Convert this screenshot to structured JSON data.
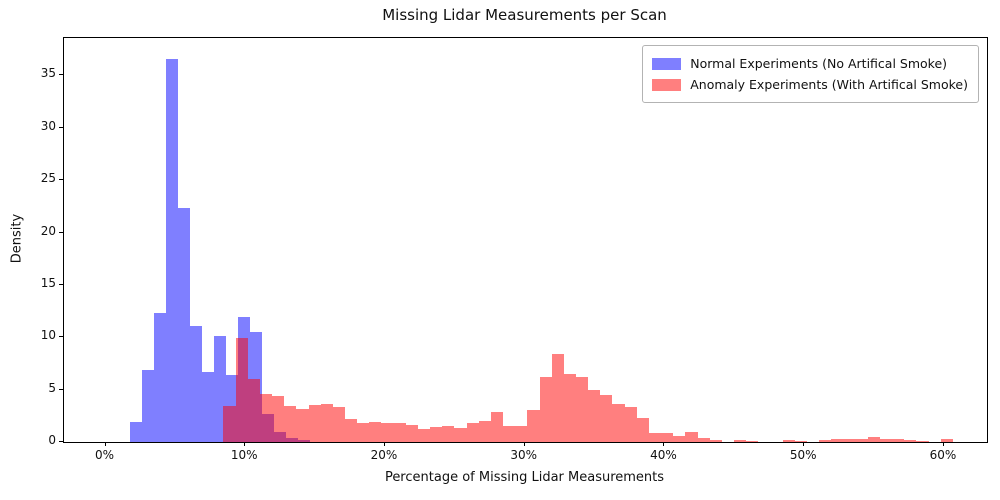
{
  "figure": {
    "background": "#ffffff",
    "axes_edge_color": "#000000"
  },
  "chart_data": {
    "type": "histogram",
    "title": "Missing Lidar Measurements per Scan",
    "xlabel": "Percentage of Missing Lidar Measurements",
    "ylabel": "Density",
    "xlim_pct": [
      -2.97,
      63.08
    ],
    "ylim": [
      0,
      38.58
    ],
    "grid": false,
    "x_ticks": [
      {
        "label": "0%",
        "value": 0
      },
      {
        "label": "10%",
        "value": 10
      },
      {
        "label": "20%",
        "value": 20
      },
      {
        "label": "30%",
        "value": 30
      },
      {
        "label": "40%",
        "value": 40
      },
      {
        "label": "50%",
        "value": 50
      },
      {
        "label": "60%",
        "value": 60
      }
    ],
    "y_ticks": [
      {
        "label": "0",
        "value": 0
      },
      {
        "label": "5",
        "value": 5
      },
      {
        "label": "10",
        "value": 10
      },
      {
        "label": "15",
        "value": 15
      },
      {
        "label": "20",
        "value": 20
      },
      {
        "label": "25",
        "value": 25
      },
      {
        "label": "30",
        "value": 30
      },
      {
        "label": "35",
        "value": 35
      }
    ],
    "series": [
      {
        "name": "Normal Experiments (No Artifical Smoke)",
        "key": "normal",
        "fill": "rgba(0,0,255,0.5)",
        "solid_color_on_white": "#8080ff",
        "bin_start_pct": 1.72,
        "bin_width_pct": 0.86,
        "heights": [
          1.9,
          6.9,
          12.3,
          36.6,
          22.3,
          11.1,
          6.7,
          10.1,
          6.4,
          11.9,
          10.5,
          2.7,
          1.0,
          0.4,
          0.2
        ]
      },
      {
        "name": "Anomaly Experiments (With Artifical Smoke)",
        "key": "anomaly",
        "fill": "rgba(255,0,0,0.5)",
        "solid_color_on_white": "#ff8080",
        "bin_start_pct": 8.44,
        "bin_width_pct": 0.87,
        "heights": [
          3.4,
          9.9,
          6.0,
          4.6,
          4.4,
          3.4,
          3.2,
          3.5,
          3.6,
          3.3,
          2.2,
          1.8,
          1.9,
          1.8,
          1.8,
          1.6,
          1.2,
          1.4,
          1.5,
          1.3,
          1.85,
          2.05,
          2.9,
          1.5,
          1.55,
          3.1,
          6.2,
          8.4,
          6.5,
          6.2,
          5.0,
          4.5,
          3.6,
          3.3,
          2.3,
          0.9,
          0.85,
          0.55,
          0.95,
          0.4,
          0.15,
          0,
          0.2,
          0.1,
          0,
          0,
          0.2,
          0.1,
          0,
          0.15,
          0.25,
          0.3,
          0.25,
          0.5,
          0.3,
          0.25,
          0.2,
          0.1,
          0,
          0.3
        ]
      }
    ],
    "overlap_color_on_white": "#bf4080",
    "legend": {
      "position": "upper right",
      "entries": [
        {
          "label": "Normal Experiments (No Artifical Smoke)"
        },
        {
          "label": "Anomaly Experiments (With Artifical Smoke)"
        }
      ]
    }
  }
}
